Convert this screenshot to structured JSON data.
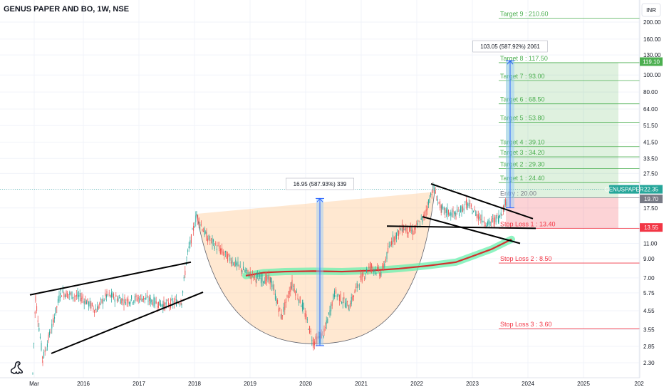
{
  "header": {
    "title": "GENUS PAPER AND BO, 1W, NSE"
  },
  "currency": "INR",
  "chart_data": {
    "type": "candlestick",
    "symbol_label": "GENUSPAPER",
    "price_axis": {
      "scale": "log",
      "ticks": [
        "200.00",
        "160.00",
        "130.00",
        "100.00",
        "80.00",
        "64.00",
        "51.50",
        "41.50",
        "33.50",
        "27.50",
        "22.35",
        "17.50",
        "13.55",
        "11.00",
        "9.00",
        "7.00",
        "5.75",
        "4.55",
        "3.55",
        "2.85",
        "2.30"
      ]
    },
    "time_axis": {
      "ticks": [
        "Mar",
        "2016",
        "2017",
        "2018",
        "2019",
        "2020",
        "2021",
        "2022",
        "2023",
        "2024",
        "2025",
        "202"
      ]
    },
    "last_price": "22.35",
    "price_badges": [
      {
        "value": "22.35",
        "color": "#26a69a"
      },
      {
        "value": "19.70",
        "color": "#787b86"
      },
      {
        "value": "13.55",
        "color": "#f23645"
      },
      {
        "value": "119.10",
        "color": "#4caf50"
      }
    ],
    "target_lines": [
      {
        "label": "Target 9 : 210.60",
        "price": 210.6,
        "kind": "target"
      },
      {
        "label": "Target 8 : 117.50",
        "price": 117.5,
        "kind": "target"
      },
      {
        "label": "Target 7 : 93.00",
        "price": 93.0,
        "kind": "target"
      },
      {
        "label": "Target 6 : 68.50",
        "price": 68.5,
        "kind": "target"
      },
      {
        "label": "Target 5 : 53.80",
        "price": 53.8,
        "kind": "target"
      },
      {
        "label": "Target 4 : 39.10",
        "price": 39.1,
        "kind": "target"
      },
      {
        "label": "Target 3 : 34.20",
        "price": 34.2,
        "kind": "target"
      },
      {
        "label": "Target 2 : 29.30",
        "price": 29.3,
        "kind": "target"
      },
      {
        "label": "Target 1 : 24.40",
        "price": 24.4,
        "kind": "target"
      },
      {
        "label": "Entry : 20.00",
        "price": 20.0,
        "kind": "entry"
      },
      {
        "label": "Stop Loss 1 : 13.40",
        "price": 13.4,
        "kind": "stop"
      },
      {
        "label": "Stop Loss 2 : 8.50",
        "price": 8.5,
        "kind": "stop"
      },
      {
        "label": "Stop Loss 3 : 3.60",
        "price": 3.6,
        "kind": "stop"
      }
    ],
    "measurements": [
      {
        "label": "16.95 (587.93%) 339",
        "from": 2.88,
        "to": 19.83
      },
      {
        "label": "103.05 (587.92%) 2061",
        "from": 17.53,
        "to": 120.58
      }
    ],
    "colors": {
      "up": "#26a69a",
      "down": "#ef5350",
      "target": "#4caf50",
      "stop": "#f23645",
      "cup": "#ffcc99"
    }
  }
}
